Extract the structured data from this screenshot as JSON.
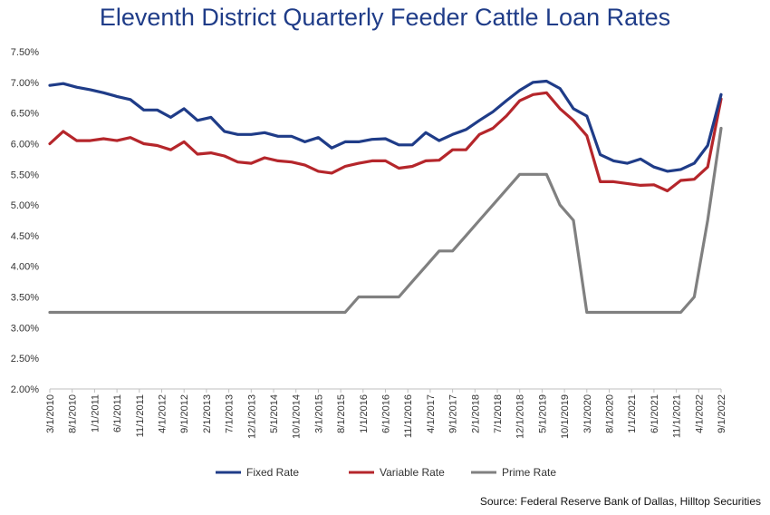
{
  "chart_data": {
    "type": "line",
    "title": "Eleventh District Quarterly Feeder Cattle Loan Rates",
    "source": "Source: Federal Reserve Bank of Dallas, Hilltop Securities",
    "ylim": [
      2.0,
      7.5
    ],
    "y_ticks": [
      "2.00%",
      "2.50%",
      "3.00%",
      "3.50%",
      "4.00%",
      "4.50%",
      "5.00%",
      "5.50%",
      "6.00%",
      "6.50%",
      "7.00%",
      "7.50%"
    ],
    "x_tick_labels": [
      "3/1/2010",
      "8/1/2010",
      "1/1/2011",
      "6/1/2011",
      "11/1/2011",
      "4/1/2012",
      "9/1/2012",
      "2/1/2013",
      "7/1/2013",
      "12/1/2013",
      "5/1/2014",
      "10/1/2014",
      "3/1/2015",
      "8/1/2015",
      "1/1/2016",
      "6/1/2016",
      "11/1/2016",
      "4/1/2017",
      "9/1/2017",
      "2/1/2018",
      "7/1/2018",
      "12/1/2018",
      "5/1/2019",
      "10/1/2019",
      "3/1/2020",
      "8/1/2020",
      "1/1/2021",
      "6/1/2021",
      "11/1/2021",
      "4/1/2022",
      "9/1/2022"
    ],
    "grid": false,
    "legend_position": "bottom",
    "series": [
      {
        "name": "Fixed Rate",
        "color": "#1f3c88",
        "values": [
          6.95,
          6.98,
          6.92,
          6.88,
          6.83,
          6.77,
          6.72,
          6.55,
          6.55,
          6.43,
          6.57,
          6.38,
          6.43,
          6.2,
          6.15,
          6.15,
          6.18,
          6.12,
          6.12,
          6.03,
          6.1,
          5.93,
          6.03,
          6.03,
          6.07,
          6.08,
          5.98,
          5.98,
          6.18,
          6.05,
          6.15,
          6.23,
          6.38,
          6.52,
          6.7,
          6.87,
          7.0,
          7.02,
          6.9,
          6.57,
          6.45,
          5.82,
          5.72,
          5.68,
          5.75,
          5.62,
          5.55,
          5.58,
          5.68,
          5.97,
          6.8
        ]
      },
      {
        "name": "Variable Rate",
        "color": "#b5262b",
        "values": [
          6.0,
          6.2,
          6.05,
          6.05,
          6.08,
          6.05,
          6.1,
          6.0,
          5.97,
          5.9,
          6.03,
          5.83,
          5.85,
          5.8,
          5.7,
          5.68,
          5.77,
          5.72,
          5.7,
          5.65,
          5.55,
          5.52,
          5.63,
          5.68,
          5.72,
          5.72,
          5.6,
          5.63,
          5.72,
          5.73,
          5.9,
          5.9,
          6.15,
          6.25,
          6.45,
          6.7,
          6.8,
          6.83,
          6.57,
          6.38,
          6.13,
          5.38,
          5.38,
          5.35,
          5.32,
          5.33,
          5.23,
          5.4,
          5.42,
          5.62,
          6.73
        ]
      },
      {
        "name": "Prime Rate",
        "color": "#808080",
        "values": [
          3.25,
          3.25,
          3.25,
          3.25,
          3.25,
          3.25,
          3.25,
          3.25,
          3.25,
          3.25,
          3.25,
          3.25,
          3.25,
          3.25,
          3.25,
          3.25,
          3.25,
          3.25,
          3.25,
          3.25,
          3.25,
          3.25,
          3.25,
          3.5,
          3.5,
          3.5,
          3.5,
          3.75,
          4.0,
          4.25,
          4.25,
          4.5,
          4.75,
          5.0,
          5.25,
          5.5,
          5.5,
          5.5,
          5.0,
          4.75,
          3.25,
          3.25,
          3.25,
          3.25,
          3.25,
          3.25,
          3.25,
          3.25,
          3.5,
          4.75,
          6.25
        ]
      }
    ]
  }
}
